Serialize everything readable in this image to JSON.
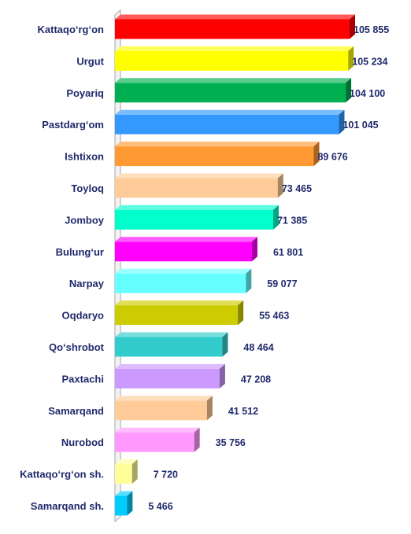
{
  "chart_data": {
    "type": "bar",
    "orientation": "horizontal",
    "style": "3d",
    "grid": false,
    "legend": "none",
    "xlim": [
      0,
      115000
    ],
    "categories": [
      "Kattaqo‘rg‘on",
      "Urgut",
      "Poyariq",
      "Pastdarg‘om",
      "Ishtixon",
      "Toyloq",
      "Jomboy",
      "Bulung‘ur",
      "Narpay",
      "Oqdaryo",
      "Qo‘shrobot",
      "Paxtachi",
      "Samarqand",
      "Nurobod",
      "Kattaqo‘rg‘on sh.",
      "Samarqand sh."
    ],
    "values": [
      105855,
      105234,
      104100,
      101045,
      89676,
      73465,
      71385,
      61801,
      59077,
      55463,
      48464,
      47208,
      41512,
      35756,
      7720,
      5466
    ],
    "value_labels": [
      "105 855",
      "105 234",
      "104 100",
      "101 045",
      "89 676",
      "73 465",
      "71 385",
      "61 801",
      "59 077",
      "55 463",
      "48 464",
      "47 208",
      "41 512",
      "35 756",
      "7 720",
      "5 466"
    ],
    "colors": [
      "#ff0000",
      "#ffff00",
      "#00b050",
      "#3399ff",
      "#ff9933",
      "#ffcc99",
      "#00ffcc",
      "#ff00ff",
      "#66ffff",
      "#cccc00",
      "#33cccc",
      "#cc99ff",
      "#ffcc99",
      "#ff99ff",
      "#ffff99",
      "#00ccff"
    ]
  }
}
